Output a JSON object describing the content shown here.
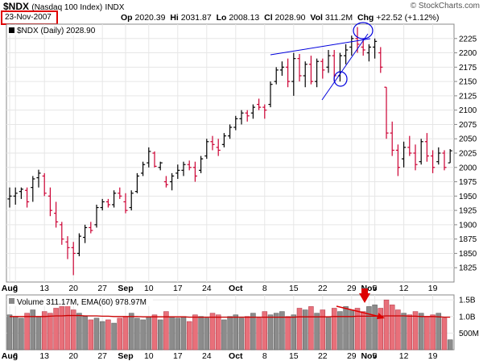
{
  "header": {
    "symbol": "$NDX",
    "name": "(Nasdaq 100 Index)",
    "exchange": "INDX",
    "date": "23-Nov-2007",
    "op_label": "Op",
    "op": "2020.39",
    "hi_label": "Hi",
    "hi": "2031.87",
    "lo_label": "Lo",
    "lo": "2008.13",
    "cl_label": "Cl",
    "cl": "2028.90",
    "vol_label": "Vol",
    "vol": "311.2M",
    "chg_label": "Chg",
    "chg": "+22.52 (+1.12%)",
    "brand": "© StockCharts.com"
  },
  "chart_data": {
    "type": "ohlc",
    "legend": "$NDX (Daily) 2028.90",
    "ylim": [
      1800,
      2250
    ],
    "y_ticks": [
      1825,
      1850,
      1875,
      1900,
      1925,
      1950,
      1975,
      2000,
      2025,
      2050,
      2075,
      2100,
      2125,
      2150,
      2175,
      2200,
      2225
    ],
    "x_labels": [
      {
        "day": 0,
        "label": "Aug",
        "bold": true
      },
      {
        "day": 1,
        "label": "6",
        "bold": false
      },
      {
        "day": 6,
        "label": "13",
        "bold": false
      },
      {
        "day": 11,
        "label": "20",
        "bold": false
      },
      {
        "day": 16,
        "label": "27",
        "bold": false
      },
      {
        "day": 20,
        "label": "Sep",
        "bold": true
      },
      {
        "day": 24,
        "label": "10",
        "bold": false
      },
      {
        "day": 29,
        "label": "17",
        "bold": false
      },
      {
        "day": 34,
        "label": "24",
        "bold": false
      },
      {
        "day": 39,
        "label": "Oct",
        "bold": true
      },
      {
        "day": 44,
        "label": "8",
        "bold": false
      },
      {
        "day": 49,
        "label": "15",
        "bold": false
      },
      {
        "day": 54,
        "label": "22",
        "bold": false
      },
      {
        "day": 59,
        "label": "29",
        "bold": false
      },
      {
        "day": 62,
        "label": "Nov",
        "bold": true
      },
      {
        "day": 63,
        "label": "5",
        "bold": false
      },
      {
        "day": 68,
        "label": "12",
        "bold": false
      },
      {
        "day": 73,
        "label": "19",
        "bold": false
      }
    ],
    "bars": [
      {
        "o": 1945,
        "h": 1965,
        "l": 1930,
        "c": 1950,
        "up": true
      },
      {
        "o": 1950,
        "h": 1965,
        "l": 1935,
        "c": 1955,
        "up": true
      },
      {
        "o": 1958,
        "h": 1965,
        "l": 1945,
        "c": 1962,
        "up": true
      },
      {
        "o": 1960,
        "h": 1965,
        "l": 1930,
        "c": 1940,
        "up": false
      },
      {
        "o": 1965,
        "h": 1985,
        "l": 1940,
        "c": 1980,
        "up": true
      },
      {
        "o": 1982,
        "h": 1996,
        "l": 1965,
        "c": 1990,
        "up": true
      },
      {
        "o": 1985,
        "h": 1990,
        "l": 1950,
        "c": 1955,
        "up": false
      },
      {
        "o": 1950,
        "h": 1965,
        "l": 1915,
        "c": 1925,
        "up": false
      },
      {
        "o": 1920,
        "h": 1940,
        "l": 1895,
        "c": 1905,
        "up": false
      },
      {
        "o": 1900,
        "h": 1905,
        "l": 1865,
        "c": 1875,
        "up": false
      },
      {
        "o": 1870,
        "h": 1880,
        "l": 1840,
        "c": 1860,
        "up": false
      },
      {
        "o": 1860,
        "h": 1870,
        "l": 1812,
        "c": 1850,
        "up": false
      },
      {
        "o": 1850,
        "h": 1885,
        "l": 1845,
        "c": 1880,
        "up": true
      },
      {
        "o": 1878,
        "h": 1900,
        "l": 1868,
        "c": 1895,
        "up": true
      },
      {
        "o": 1895,
        "h": 1905,
        "l": 1885,
        "c": 1890,
        "up": false
      },
      {
        "o": 1900,
        "h": 1935,
        "l": 1895,
        "c": 1930,
        "up": true
      },
      {
        "o": 1930,
        "h": 1945,
        "l": 1925,
        "c": 1940,
        "up": true
      },
      {
        "o": 1940,
        "h": 1945,
        "l": 1930,
        "c": 1935,
        "up": false
      },
      {
        "o": 1935,
        "h": 1960,
        "l": 1930,
        "c": 1955,
        "up": true
      },
      {
        "o": 1955,
        "h": 1965,
        "l": 1945,
        "c": 1950,
        "up": false
      },
      {
        "o": 1940,
        "h": 1955,
        "l": 1920,
        "c": 1925,
        "up": false
      },
      {
        "o": 1930,
        "h": 1960,
        "l": 1925,
        "c": 1955,
        "up": true
      },
      {
        "o": 1958,
        "h": 1990,
        "l": 1955,
        "c": 1985,
        "up": true
      },
      {
        "o": 1990,
        "h": 2010,
        "l": 1985,
        "c": 2005,
        "up": true
      },
      {
        "o": 2008,
        "h": 2035,
        "l": 2000,
        "c": 2028,
        "up": true
      },
      {
        "o": 2025,
        "h": 2028,
        "l": 2000,
        "c": 2002,
        "up": false
      },
      {
        "o": 2000,
        "h": 2010,
        "l": 1995,
        "c": 2008,
        "up": true
      },
      {
        "o": 1975,
        "h": 1985,
        "l": 1965,
        "c": 1970,
        "up": false
      },
      {
        "o": 1975,
        "h": 1990,
        "l": 1960,
        "c": 1985,
        "up": true
      },
      {
        "o": 1990,
        "h": 2005,
        "l": 1980,
        "c": 1995,
        "up": true
      },
      {
        "o": 1995,
        "h": 2010,
        "l": 1985,
        "c": 2005,
        "up": true
      },
      {
        "o": 2005,
        "h": 2012,
        "l": 1995,
        "c": 2000,
        "up": false
      },
      {
        "o": 2000,
        "h": 2010,
        "l": 1975,
        "c": 1985,
        "up": false
      },
      {
        "o": 1995,
        "h": 2020,
        "l": 1990,
        "c": 2015,
        "up": true
      },
      {
        "o": 2020,
        "h": 2050,
        "l": 2015,
        "c": 2045,
        "up": true
      },
      {
        "o": 2045,
        "h": 2055,
        "l": 2030,
        "c": 2040,
        "up": false
      },
      {
        "o": 2035,
        "h": 2050,
        "l": 2020,
        "c": 2030,
        "up": false
      },
      {
        "o": 2040,
        "h": 2060,
        "l": 2035,
        "c": 2055,
        "up": true
      },
      {
        "o": 2055,
        "h": 2075,
        "l": 2050,
        "c": 2070,
        "up": true
      },
      {
        "o": 2070,
        "h": 2090,
        "l": 2065,
        "c": 2085,
        "up": true
      },
      {
        "o": 2085,
        "h": 2100,
        "l": 2075,
        "c": 2095,
        "up": true
      },
      {
        "o": 2095,
        "h": 2100,
        "l": 2080,
        "c": 2090,
        "up": false
      },
      {
        "o": 2095,
        "h": 2110,
        "l": 2085,
        "c": 2105,
        "up": true
      },
      {
        "o": 2110,
        "h": 2120,
        "l": 2100,
        "c": 2105,
        "up": false
      },
      {
        "o": 2105,
        "h": 2110,
        "l": 2085,
        "c": 2100,
        "up": false
      },
      {
        "o": 2110,
        "h": 2150,
        "l": 2105,
        "c": 2145,
        "up": true
      },
      {
        "o": 2150,
        "h": 2175,
        "l": 2145,
        "c": 2170,
        "up": true
      },
      {
        "o": 2170,
        "h": 2185,
        "l": 2160,
        "c": 2175,
        "up": true
      },
      {
        "o": 2175,
        "h": 2190,
        "l": 2140,
        "c": 2150,
        "up": false
      },
      {
        "o": 2150,
        "h": 2200,
        "l": 2125,
        "c": 2190,
        "up": true
      },
      {
        "o": 2190,
        "h": 2198,
        "l": 2150,
        "c": 2160,
        "up": false
      },
      {
        "o": 2160,
        "h": 2185,
        "l": 2140,
        "c": 2180,
        "up": true
      },
      {
        "o": 2180,
        "h": 2195,
        "l": 2145,
        "c": 2150,
        "up": false
      },
      {
        "o": 2150,
        "h": 2190,
        "l": 2140,
        "c": 2185,
        "up": true
      },
      {
        "o": 2185,
        "h": 2190,
        "l": 2155,
        "c": 2170,
        "up": false
      },
      {
        "o": 2175,
        "h": 2205,
        "l": 2165,
        "c": 2195,
        "up": true
      },
      {
        "o": 2195,
        "h": 2205,
        "l": 2150,
        "c": 2160,
        "up": false
      },
      {
        "o": 2160,
        "h": 2200,
        "l": 2150,
        "c": 2195,
        "up": true
      },
      {
        "o": 2195,
        "h": 2215,
        "l": 2180,
        "c": 2205,
        "up": true
      },
      {
        "o": 2210,
        "h": 2230,
        "l": 2195,
        "c": 2225,
        "up": true
      },
      {
        "o": 2225,
        "h": 2245,
        "l": 2200,
        "c": 2215,
        "up": false
      },
      {
        "o": 2210,
        "h": 2225,
        "l": 2195,
        "c": 2205,
        "up": false
      },
      {
        "o": 2200,
        "h": 2215,
        "l": 2185,
        "c": 2210,
        "up": true
      },
      {
        "o": 2210,
        "h": 2225,
        "l": 2190,
        "c": 2220,
        "up": true
      },
      {
        "o": 2200,
        "h": 2210,
        "l": 2165,
        "c": 2175,
        "up": false
      },
      {
        "o": 2140,
        "h": 2140,
        "l": 2050,
        "c": 2060,
        "up": false
      },
      {
        "o": 2060,
        "h": 2080,
        "l": 2020,
        "c": 2030,
        "up": false
      },
      {
        "o": 2030,
        "h": 2040,
        "l": 1985,
        "c": 2000,
        "up": false
      },
      {
        "o": 2015,
        "h": 2045,
        "l": 2000,
        "c": 2035,
        "up": true
      },
      {
        "o": 2035,
        "h": 2055,
        "l": 2020,
        "c": 2025,
        "up": false
      },
      {
        "o": 2025,
        "h": 2040,
        "l": 1995,
        "c": 2005,
        "up": false
      },
      {
        "o": 2010,
        "h": 2050,
        "l": 2005,
        "c": 2045,
        "up": true
      },
      {
        "o": 2045,
        "h": 2060,
        "l": 2010,
        "c": 2020,
        "up": false
      },
      {
        "o": 2020,
        "h": 2030,
        "l": 1990,
        "c": 2000,
        "up": false
      },
      {
        "o": 2010,
        "h": 2035,
        "l": 2005,
        "c": 2025,
        "up": true
      },
      {
        "o": 2025,
        "h": 2030,
        "l": 1995,
        "c": 2000,
        "up": false
      },
      {
        "o": 2008,
        "h": 2032,
        "l": 2008,
        "c": 2029,
        "up": true
      }
    ],
    "volume": {
      "legend": "Volume 311.17M, EMA(60) 978.97M",
      "ylim": [
        0,
        1.65
      ],
      "y_ticks": [
        {
          "v": 0.5,
          "label": "500M"
        },
        {
          "v": 1.0,
          "label": "1.0B"
        },
        {
          "v": 1.5,
          "label": "1.5B"
        }
      ],
      "values": [
        1.05,
        1.0,
        0.95,
        1.1,
        1.2,
        1.0,
        1.15,
        1.1,
        1.25,
        1.3,
        1.45,
        1.2,
        1.1,
        1.0,
        0.9,
        0.95,
        0.85,
        0.9,
        0.8,
        0.95,
        1.0,
        1.1,
        0.95,
        0.9,
        1.0,
        1.05,
        0.9,
        1.15,
        1.0,
        0.95,
        1.0,
        0.85,
        1.05,
        1.0,
        0.95,
        1.1,
        1.05,
        0.9,
        1.0,
        1.05,
        0.95,
        1.0,
        1.1,
        0.95,
        1.15,
        1.05,
        1.1,
        1.15,
        1.0,
        1.05,
        1.25,
        1.2,
        1.3,
        1.1,
        1.2,
        1.0,
        1.25,
        1.15,
        1.3,
        1.2,
        1.25,
        1.15,
        1.3,
        1.35,
        1.25,
        1.5,
        1.35,
        1.2,
        1.1,
        1.05,
        1.15,
        1.1,
        1.0,
        1.05,
        1.1,
        0.95,
        0.3
      ],
      "ema": [
        1.0,
        1.0,
        1.0,
        1.0,
        1.0,
        1.0,
        1.0,
        1.01,
        1.02,
        1.02,
        1.03,
        1.03,
        1.03,
        1.02,
        1.02,
        1.02,
        1.01,
        1.01,
        1.0,
        1.0,
        1.0,
        1.0,
        1.0,
        0.99,
        0.99,
        0.99,
        0.99,
        0.99,
        0.99,
        0.99,
        0.99,
        0.98,
        0.98,
        0.98,
        0.98,
        0.98,
        0.98,
        0.98,
        0.98,
        0.98,
        0.98,
        0.98,
        0.98,
        0.98,
        0.98,
        0.98,
        0.98,
        0.98,
        0.98,
        0.98,
        0.99,
        0.99,
        0.99,
        0.99,
        0.99,
        0.99,
        1.0,
        1.0,
        1.0,
        1.0,
        1.01,
        1.01,
        1.01,
        1.01,
        1.01,
        1.02,
        1.02,
        1.02,
        1.02,
        1.01,
        1.01,
        1.0,
        1.0,
        1.0,
        0.99,
        0.98,
        0.98
      ]
    }
  }
}
